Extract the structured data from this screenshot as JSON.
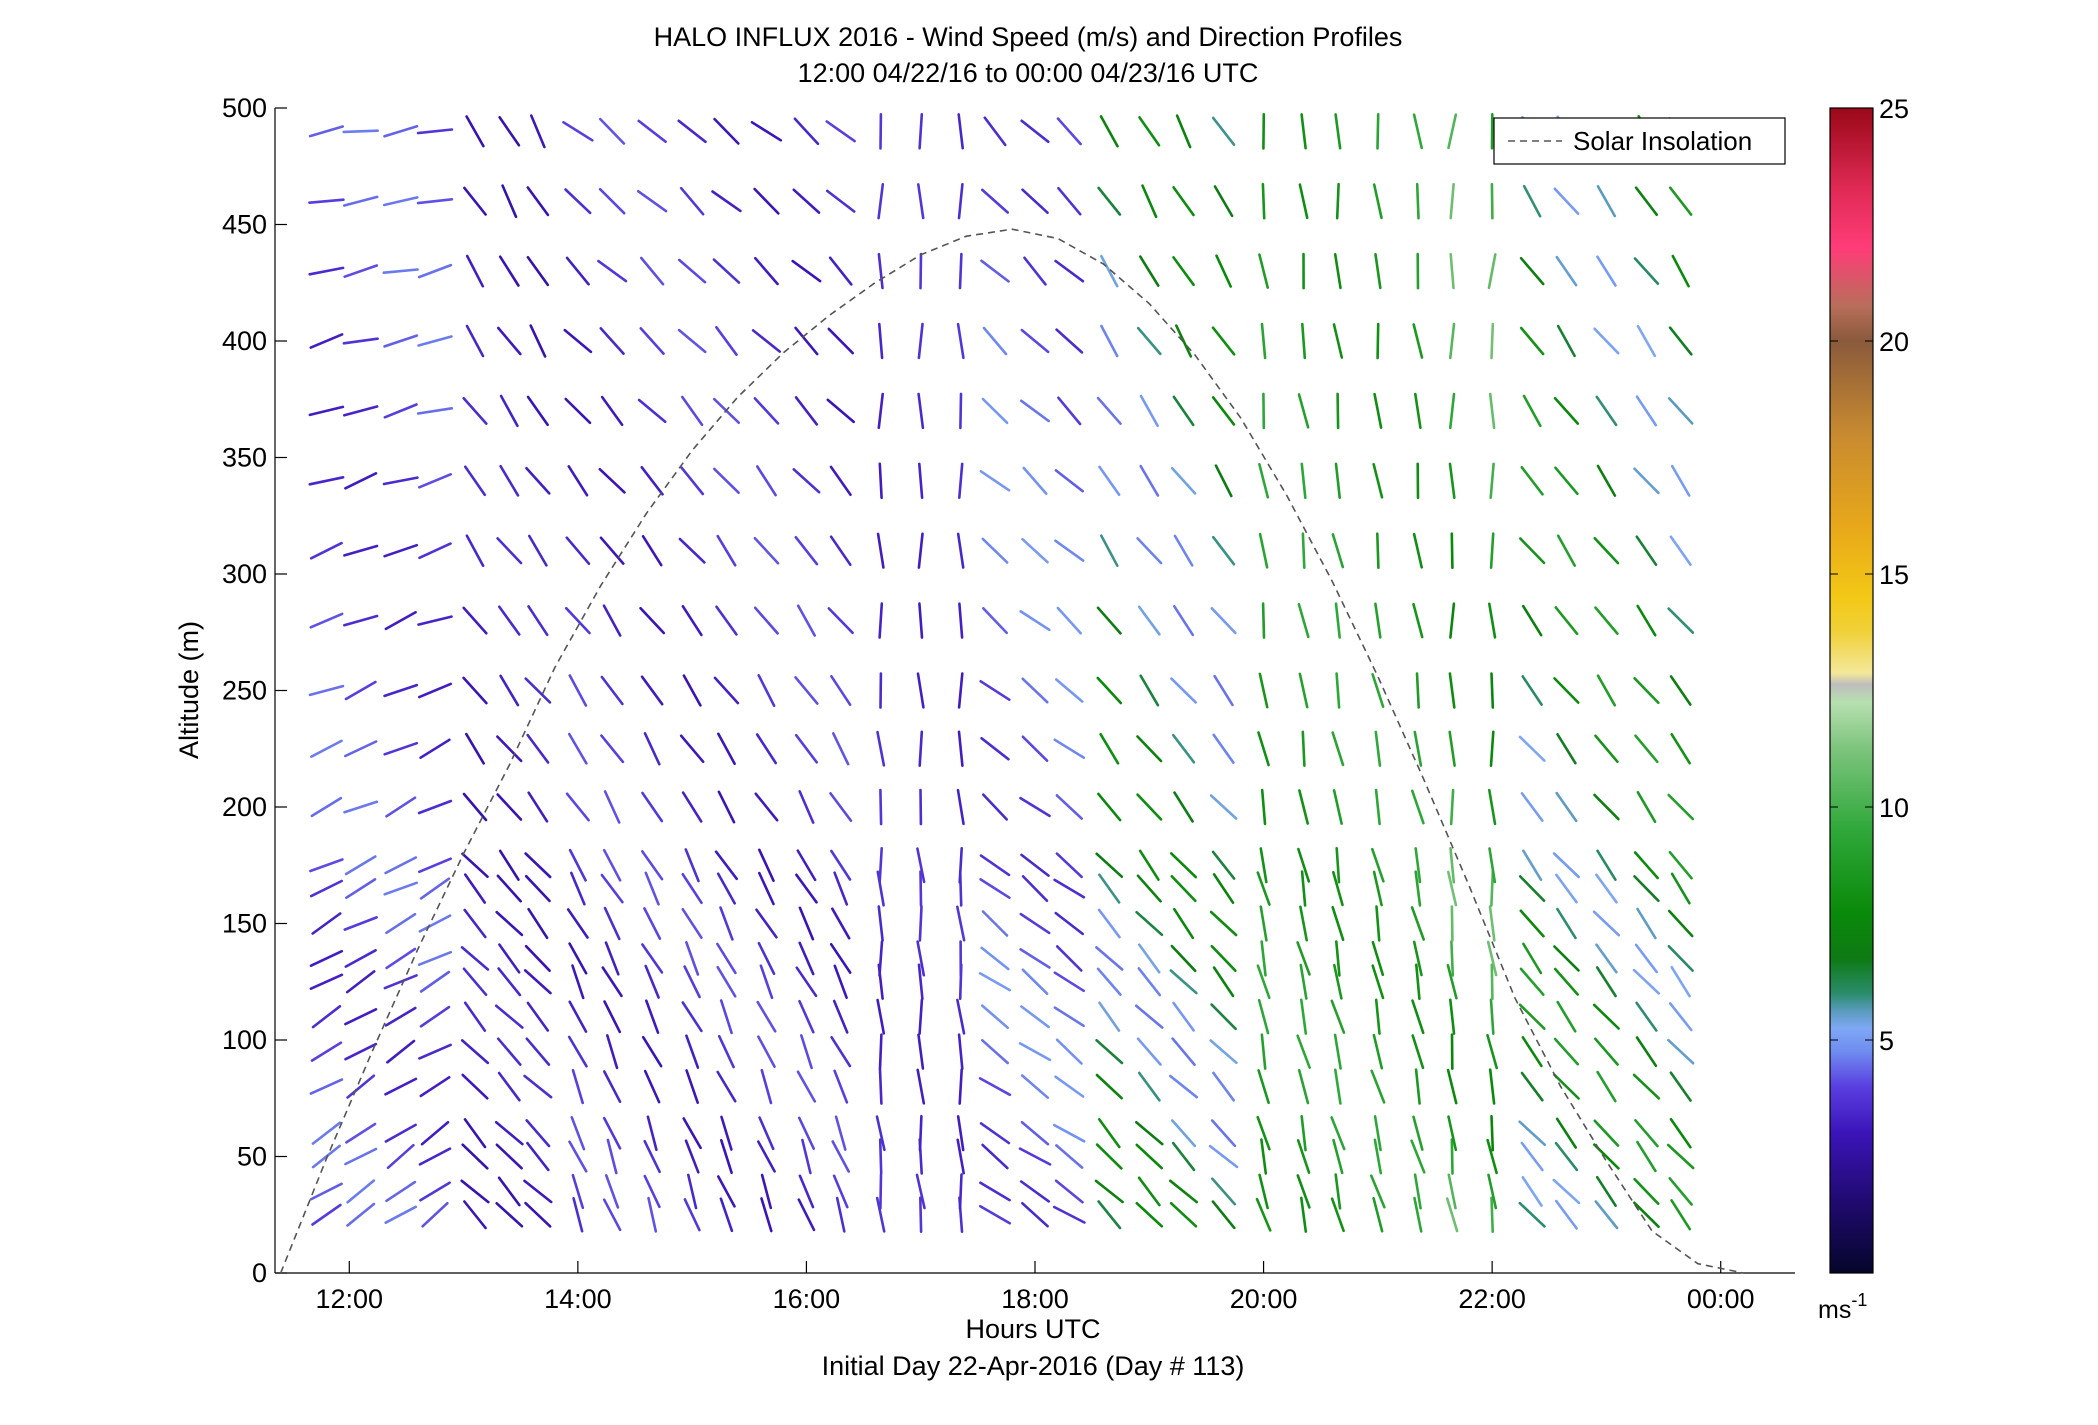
{
  "chart_data": {
    "type": "quiver",
    "title": "HALO INFLUX 2016 - Wind Speed (m/s) and Direction Profiles",
    "subtitle": "12:00 04/22/16 to 00:00 04/23/16  UTC",
    "xlabel": "Hours UTC",
    "xlabel2": "Initial Day 22-Apr-2016 (Day # 113)",
    "ylabel": "Altitude (m)",
    "xlim": [
      11.35,
      24.65
    ],
    "ylim": [
      0,
      500
    ],
    "x_ticks": [
      12,
      14,
      16,
      18,
      20,
      22,
      24
    ],
    "x_tick_labels": [
      "12:00",
      "14:00",
      "16:00",
      "18:00",
      "20:00",
      "22:00",
      "00:00"
    ],
    "y_ticks": [
      0,
      50,
      100,
      150,
      200,
      250,
      300,
      350,
      400,
      450,
      500
    ],
    "y_tick_labels": [
      "0",
      "50",
      "100",
      "150",
      "200",
      "250",
      "300",
      "350",
      "400",
      "450",
      "500"
    ],
    "legend": {
      "label": "Solar Insolation",
      "placement": "top-right"
    },
    "colorbar": {
      "min": 0,
      "max": 25,
      "ticks": [
        5,
        10,
        15,
        20,
        25
      ],
      "tick_labels": [
        "5",
        "10",
        "15",
        "20",
        "25"
      ],
      "unit_label": "ms",
      "unit_exponent": "-1"
    },
    "solar_insolation": {
      "style": "dashed",
      "x": [
        11.4,
        11.8,
        12.2,
        12.6,
        13.0,
        13.4,
        13.8,
        14.2,
        14.6,
        15.0,
        15.4,
        15.8,
        16.2,
        16.6,
        17.0,
        17.4,
        17.8,
        18.2,
        18.6,
        19.0,
        19.4,
        19.8,
        20.2,
        20.6,
        21.0,
        21.4,
        21.8,
        22.2,
        22.6,
        23.0,
        23.4,
        23.8,
        24.2
      ],
      "y": [
        0,
        49,
        95,
        139,
        180,
        218,
        260,
        295,
        326,
        353,
        376,
        395,
        411,
        425,
        437,
        445,
        448,
        444,
        433,
        416,
        394,
        367,
        334,
        297,
        256,
        212,
        166,
        118,
        80,
        48,
        18,
        4,
        0
      ]
    },
    "wind_profiles": {
      "note": "direction = angle the barb points (deg clockwise from north); speed in m/s",
      "times": [
        11.8,
        12.1,
        12.45,
        12.75,
        13.1,
        13.4,
        13.65,
        14.0,
        14.3,
        14.65,
        15.0,
        15.3,
        15.65,
        16.0,
        16.3,
        16.65,
        17.0,
        17.35,
        17.65,
        18.0,
        18.3,
        18.65,
        19.0,
        19.3,
        19.65,
        20.0,
        20.35,
        20.65,
        21.0,
        21.35,
        21.65,
        22.0,
        22.35,
        22.65,
        23.0,
        23.35,
        23.65
      ],
      "altitudes": [
        25,
        35,
        50,
        60,
        80,
        95,
        110,
        125,
        135,
        150,
        165,
        175,
        200,
        225,
        250,
        280,
        310,
        340,
        370,
        400,
        430,
        460,
        490
      ],
      "time_blocks": [
        {
          "until": 13.0,
          "speed_low": 3.2,
          "speed_high": 4.6,
          "dir_low": 55,
          "dir_high": 80
        },
        {
          "until": 14.0,
          "speed_low": 2.8,
          "speed_high": 3.6,
          "dir_low": 135,
          "dir_high": 150
        },
        {
          "until": 16.5,
          "speed_low": 3.0,
          "speed_high": 4.2,
          "dir_low": 160,
          "dir_high": 130
        },
        {
          "until": 17.5,
          "speed_low": 3.2,
          "speed_high": 3.8,
          "dir_low": 175,
          "dir_high": 180
        },
        {
          "until": 18.6,
          "speed_low": 3.5,
          "speed_high": 5.0,
          "dir_low": 125,
          "dir_high": 135
        },
        {
          "until": 20.0,
          "speed_low": 4.5,
          "speed_high": 8.0,
          "dir_low": 135,
          "dir_high": 150
        },
        {
          "until": 21.5,
          "speed_low": 8.0,
          "speed_high": 9.5,
          "dir_low": 165,
          "dir_high": 175
        },
        {
          "until": 22.3,
          "speed_low": 7.5,
          "speed_high": 11.0,
          "dir_low": 170,
          "dir_high": 185
        },
        {
          "until": 24.0,
          "speed_low": 5.0,
          "speed_high": 9.0,
          "dir_low": 140,
          "dir_high": 145
        }
      ]
    }
  }
}
